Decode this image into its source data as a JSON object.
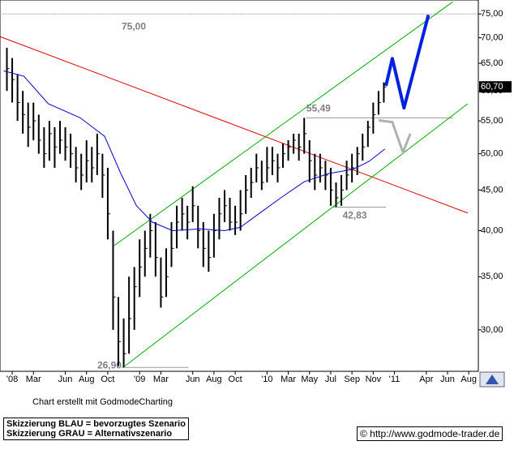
{
  "chart_data": {
    "type": "ohlc",
    "log_scale": true,
    "ylim": [
      26.6,
      78.1
    ],
    "yticks": [
      {
        "value": 30,
        "label": "30,00"
      },
      {
        "value": 35,
        "label": "35,00"
      },
      {
        "value": 40,
        "label": "40,00"
      },
      {
        "value": 45,
        "label": "45,00"
      },
      {
        "value": 50,
        "label": "50,00"
      },
      {
        "value": 55,
        "label": "55,00"
      },
      {
        "value": 60,
        "label": "60,00"
      },
      {
        "value": 65,
        "label": "65,00"
      },
      {
        "value": 70,
        "label": "70,00"
      },
      {
        "value": 75,
        "label": "75,00"
      }
    ],
    "xlim": [
      -1.15,
      43.9
    ],
    "xticks": [
      {
        "value": 0,
        "label": "'08"
      },
      {
        "value": 2,
        "label": "Mar"
      },
      {
        "value": 5,
        "label": "Jun"
      },
      {
        "value": 7,
        "label": "Aug"
      },
      {
        "value": 9,
        "label": "Oct"
      },
      {
        "value": 12,
        "label": "'09"
      },
      {
        "value": 14,
        "label": "Mar"
      },
      {
        "value": 17,
        "label": "Jun"
      },
      {
        "value": 19,
        "label": "Aug"
      },
      {
        "value": 21,
        "label": "Oct"
      },
      {
        "value": 24,
        "label": "'10"
      },
      {
        "value": 26,
        "label": "Mar"
      },
      {
        "value": 28,
        "label": "May"
      },
      {
        "value": 30,
        "label": "Jul"
      },
      {
        "value": 32,
        "label": "Sep"
      },
      {
        "value": 34,
        "label": "Nov"
      },
      {
        "value": 36,
        "label": "'11"
      },
      {
        "value": 39,
        "label": "Apr"
      },
      {
        "value": 41,
        "label": "Jun"
      },
      {
        "value": 43,
        "label": "Aug"
      }
    ],
    "bar_color": "#000000",
    "bars": {
      "x": [
        -0.5,
        0,
        0.5,
        1,
        1.5,
        2,
        2.5,
        3,
        3.5,
        4,
        4.5,
        5,
        5.5,
        6,
        6.5,
        7,
        7.5,
        8,
        8.5,
        9,
        9.5,
        10,
        10.5,
        11,
        11.5,
        12,
        12.5,
        13,
        13.5,
        14,
        14.5,
        15,
        15.5,
        16,
        16.5,
        17,
        17.5,
        18,
        18.5,
        19,
        19.5,
        20,
        20.5,
        21,
        21.5,
        22,
        22.5,
        23,
        23.5,
        24,
        24.5,
        25,
        25.5,
        26,
        26.5,
        27,
        27.5,
        28,
        28.5,
        29,
        29.5,
        30,
        30.5,
        31,
        31.5,
        32,
        32.5,
        33,
        33.5,
        34,
        34.5,
        35
      ],
      "high": [
        68,
        66,
        63,
        60,
        58,
        58,
        56,
        54,
        55,
        54,
        55,
        54,
        53,
        51,
        50,
        52,
        51,
        53,
        50,
        48,
        40,
        33,
        31,
        35,
        36,
        39,
        40,
        42,
        41,
        37,
        38,
        41,
        43,
        44,
        43,
        45.5,
        43,
        41,
        40,
        42,
        44,
        45,
        44,
        43,
        45,
        47,
        48,
        50,
        49,
        51,
        51,
        50,
        51.5,
        52,
        53,
        53,
        55.49,
        52,
        50,
        50,
        49,
        48,
        46,
        47,
        49,
        50,
        51,
        53,
        55,
        58,
        60,
        61.5
      ],
      "low": [
        60,
        58,
        55,
        53,
        51,
        52,
        50,
        48,
        49,
        48,
        50,
        49,
        48,
        46,
        45,
        46,
        46,
        47,
        44,
        39,
        30,
        27,
        26.9,
        28,
        30,
        33,
        35,
        37,
        35,
        32,
        33,
        36,
        38,
        40,
        39,
        41,
        38,
        36,
        35.5,
        37,
        39,
        41,
        40,
        39.5,
        40,
        42,
        44,
        46,
        45,
        46,
        47,
        46,
        48,
        49,
        50,
        49,
        50,
        46,
        45,
        46,
        45,
        43,
        42.83,
        43,
        45,
        46,
        47,
        49,
        51,
        53,
        56,
        58
      ],
      "close": [
        64,
        62,
        58,
        56,
        54,
        55,
        52,
        50,
        53,
        51,
        52,
        51,
        50,
        48,
        47,
        49,
        48,
        50,
        47,
        42,
        33,
        29,
        28,
        31,
        34,
        36,
        38,
        40,
        37,
        33,
        35,
        38,
        41,
        42,
        41,
        43,
        40,
        38,
        37,
        40,
        42,
        43,
        41,
        41,
        42,
        45,
        46,
        48,
        46,
        48,
        49,
        48,
        50,
        51,
        52,
        51,
        53,
        49,
        47,
        48,
        47,
        45,
        44,
        45,
        47,
        48,
        50,
        51,
        54,
        56,
        58,
        60.7
      ]
    },
    "moving_average": {
      "color": "#0000cc",
      "x": [
        -0.8,
        1.1,
        3.4,
        6.4,
        8.7,
        10.2,
        11.7,
        13.2,
        15.1,
        17.7,
        20,
        21.5,
        23,
        25.3,
        27.5,
        29.8,
        32.1,
        33.6,
        35.1
      ],
      "values": [
        63.6,
        62.6,
        57.8,
        55.5,
        52.6,
        47.3,
        43,
        41,
        40,
        40.2,
        40,
        40.4,
        41.8,
        44,
        46.1,
        47.2,
        47.8,
        48.9,
        50.7
      ]
    },
    "trendlines": [
      {
        "color": "#dd0000",
        "x": [
          -1.1,
          42.9
        ],
        "values": [
          70.2,
          42.1
        ]
      },
      {
        "color": "#00aa00",
        "x": [
          9.6,
          41.5
        ],
        "values": [
          38.3,
          77.7
        ]
      },
      {
        "color": "#00aa00",
        "x": [
          10.6,
          42.9
        ],
        "values": [
          27,
          57.8
        ]
      }
    ],
    "levels": [
      {
        "value": 75,
        "label": "75,00",
        "x": [
          -1.15,
          43.9
        ]
      },
      {
        "value": 55.49,
        "label": "55,49",
        "x": [
          27.7,
          41.5
        ]
      },
      {
        "value": 42.83,
        "label": "42,83",
        "x": [
          30.2,
          35.2
        ]
      },
      {
        "value": 26.9,
        "label": "26,90",
        "x": [
          10.3,
          16.6
        ]
      }
    ],
    "scenarios": [
      {
        "color": "#0022dd",
        "x": [
          35.2,
          35.8,
          36.9,
          39.2
        ],
        "values": [
          60.9,
          65.9,
          57.1,
          74.8
        ]
      },
      {
        "color": "#b0b0b0",
        "x": [
          34.5,
          35.8,
          36.8,
          37.5
        ],
        "values": [
          55.1,
          54.8,
          50.2,
          53
        ]
      }
    ],
    "last_price": {
      "value": 60.7,
      "label": "60,70"
    }
  },
  "credit": "Chart erstellt mit GodmodeCharting",
  "legend_lines": [
    "Skizzierung BLAU = bevorzugtes Szenario",
    "Skizzierung GRAU = Alternativszenario"
  ],
  "copyright": "© http://www.godmode-trader.de"
}
